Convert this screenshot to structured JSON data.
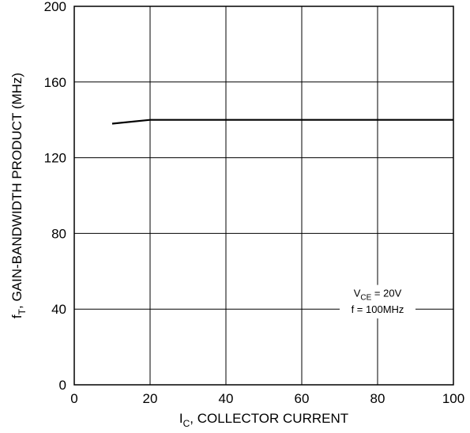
{
  "chart_data": {
    "type": "line",
    "title": "",
    "xlabel": {
      "prefix": "I",
      "sub": "C",
      "rest": ", COLLECTOR CURRENT"
    },
    "ylabel": {
      "prefix": "f",
      "sub": "T",
      "rest": ", GAIN-BANDWIDTH PRODUCT (MHz)"
    },
    "xlim": [
      0,
      100
    ],
    "ylim": [
      0,
      200
    ],
    "xticks": [
      "0",
      "20",
      "40",
      "60",
      "80",
      "100"
    ],
    "yticks": [
      "0",
      "40",
      "80",
      "120",
      "160",
      "200"
    ],
    "grid": true,
    "series": [
      {
        "x": [
          10,
          20,
          30,
          40,
          50,
          60,
          70,
          80,
          90,
          100
        ],
        "y": [
          138,
          140,
          140,
          140,
          140,
          140,
          140,
          140,
          140,
          140
        ]
      }
    ],
    "annotation": {
      "line1": {
        "prefix": "V",
        "sub": "CE",
        "rest": " = 20V"
      },
      "line2": "f = 100MHz"
    }
  }
}
